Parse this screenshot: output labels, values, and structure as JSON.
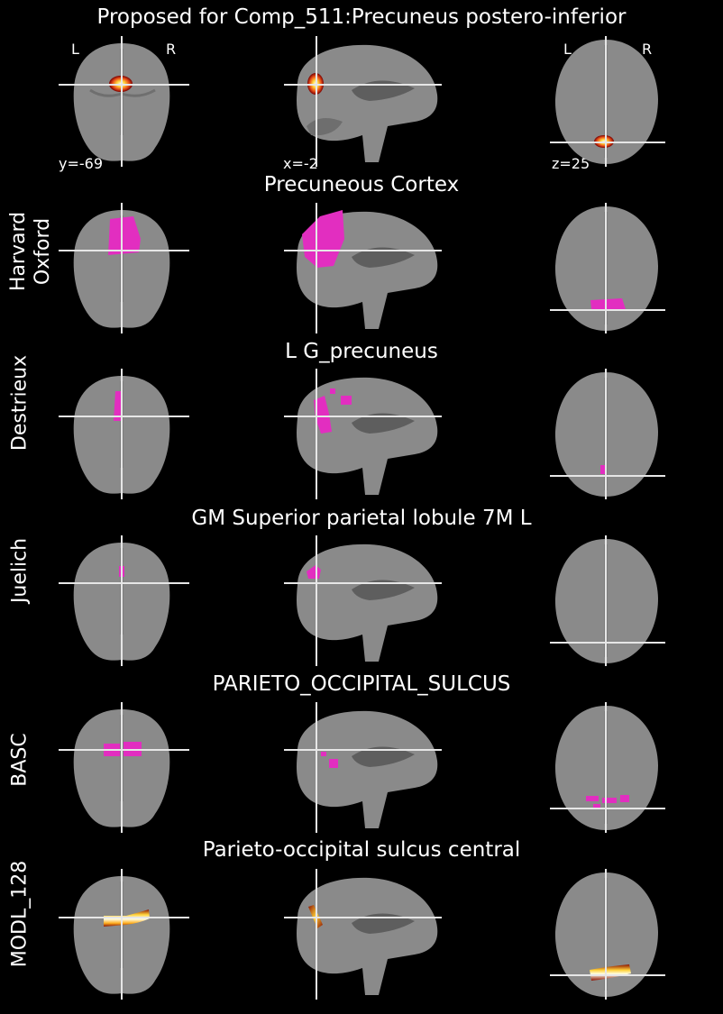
{
  "figure": {
    "title": "Proposed for Comp_511:Precuneus postero-inferior",
    "orientation_labels": {
      "left": "L",
      "right": "R"
    },
    "coordinates": {
      "coronal": "y=-69",
      "sagittal": "x=-2",
      "axial": "z=25"
    },
    "colors": {
      "background": "#000000",
      "brain_gray": "#8a8a8a",
      "atlas_region": "#e22ec0",
      "crosshair": "#e6e6e6"
    },
    "rows": [
      {
        "label": "",
        "title": "",
        "type": "heat"
      },
      {
        "label": "Harvard\nOxford",
        "title": "Precuneous Cortex",
        "type": "atlas"
      },
      {
        "label": "Destrieux",
        "title": "L G_precuneus",
        "type": "atlas"
      },
      {
        "label": "Juelich",
        "title": "GM Superior parietal lobule 7M L",
        "type": "atlas"
      },
      {
        "label": "BASC",
        "title": "PARIETO_OCCIPITAL_SULCUS",
        "type": "atlas"
      },
      {
        "label": "MODL_128",
        "title": "Parieto-occipital sulcus central",
        "type": "heat"
      }
    ]
  }
}
